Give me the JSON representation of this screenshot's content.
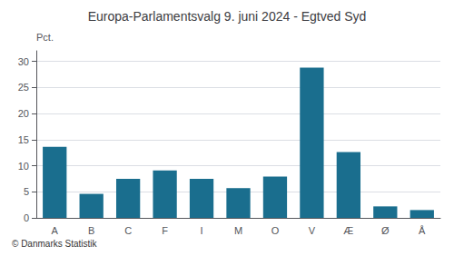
{
  "chart_data": {
    "type": "bar",
    "title": "Europa-Parlamentsvalg 9. juni 2024 - Egtved Syd",
    "ylabel": "Pct.",
    "annotations": [
      "© Danmarks Statistik"
    ],
    "categories": [
      "A",
      "B",
      "C",
      "F",
      "I",
      "M",
      "O",
      "V",
      "Æ",
      "Ø",
      "Å"
    ],
    "values": [
      13.6,
      4.6,
      7.5,
      9.1,
      7.5,
      5.7,
      7.9,
      28.8,
      12.6,
      2.2,
      1.5
    ],
    "color": "#1a6e8e",
    "ylim": [
      0,
      32
    ],
    "yticks": [
      0,
      5,
      10,
      15,
      20,
      25,
      30
    ],
    "grid": true
  }
}
